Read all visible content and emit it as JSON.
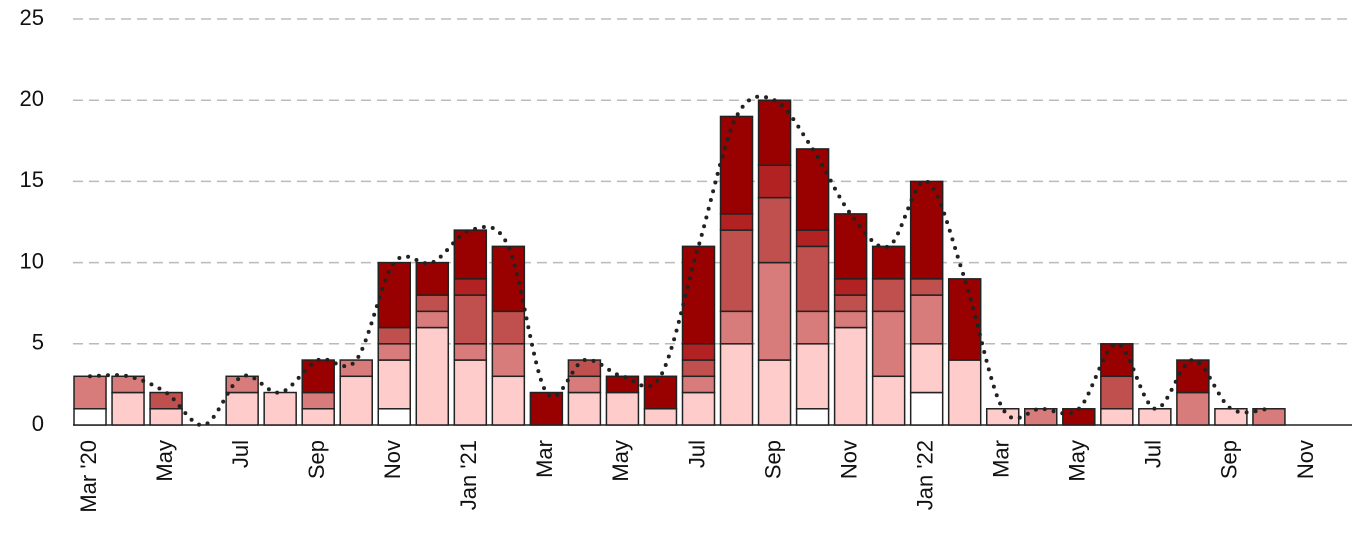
{
  "chart_data": {
    "type": "bar",
    "stacked": true,
    "categories": [
      "Mar '20",
      null,
      "May",
      null,
      "Jul",
      null,
      "Sep",
      null,
      "Nov",
      null,
      "Jan '21",
      null,
      "Mar",
      null,
      "May",
      null,
      "Jul",
      null,
      "Sep",
      null,
      "Nov",
      null,
      "Jan '22",
      null,
      "Mar",
      null,
      "May",
      null,
      "Jul",
      null,
      "Sep",
      null,
      "Nov"
    ],
    "series": [
      {
        "color": "#ffffff",
        "values": [
          1,
          0,
          0,
          0,
          0,
          0,
          0,
          0,
          1,
          0,
          0,
          0,
          0,
          0,
          0,
          0,
          0,
          0,
          0,
          1,
          0,
          0,
          2,
          0,
          0,
          0,
          0,
          0,
          0,
          0,
          0,
          0,
          0
        ]
      },
      {
        "color": "#ffcccc",
        "values": [
          0,
          2,
          1,
          0,
          2,
          2,
          1,
          3,
          3,
          6,
          4,
          3,
          0,
          2,
          2,
          1,
          2,
          5,
          4,
          4,
          6,
          3,
          3,
          4,
          1,
          0,
          0,
          1,
          1,
          0,
          1,
          0,
          0
        ]
      },
      {
        "color": "#d77b7b",
        "values": [
          2,
          1,
          0,
          0,
          1,
          0,
          1,
          1,
          1,
          1,
          1,
          2,
          0,
          1,
          0,
          0,
          1,
          2,
          6,
          2,
          1,
          4,
          3,
          0,
          0,
          1,
          0,
          0,
          0,
          2,
          0,
          1,
          0
        ]
      },
      {
        "color": "#c0504d",
        "values": [
          0,
          0,
          1,
          0,
          0,
          0,
          0,
          0,
          1,
          1,
          3,
          2,
          0,
          1,
          0,
          0,
          1,
          5,
          4,
          4,
          1,
          2,
          1,
          0,
          0,
          0,
          0,
          2,
          0,
          0,
          0,
          0,
          0
        ]
      },
      {
        "color": "#b22222",
        "values": [
          0,
          0,
          0,
          0,
          0,
          0,
          0,
          0,
          0,
          0,
          1,
          0,
          0,
          0,
          0,
          0,
          1,
          1,
          2,
          1,
          1,
          0,
          0,
          0,
          0,
          0,
          0,
          0,
          0,
          0,
          0,
          0,
          0
        ]
      },
      {
        "color": "#990000",
        "values": [
          0,
          0,
          0,
          0,
          0,
          0,
          2,
          0,
          4,
          2,
          3,
          4,
          2,
          0,
          1,
          2,
          6,
          6,
          4,
          5,
          4,
          2,
          6,
          5,
          0,
          0,
          1,
          2,
          0,
          2,
          0,
          0,
          0
        ]
      }
    ],
    "trend": {
      "color": "#222222",
      "style": "dotted",
      "values": [
        3,
        3,
        2,
        0,
        3,
        2,
        4,
        4,
        10,
        10,
        12,
        11,
        2,
        4,
        3,
        3,
        11,
        19,
        20,
        17,
        13,
        11,
        15,
        9,
        1,
        1,
        1,
        5,
        1,
        4,
        1,
        1,
        null
      ]
    },
    "ylim": [
      0,
      25
    ],
    "yticks": [
      0,
      5,
      10,
      15,
      20,
      25
    ],
    "grid": true
  }
}
